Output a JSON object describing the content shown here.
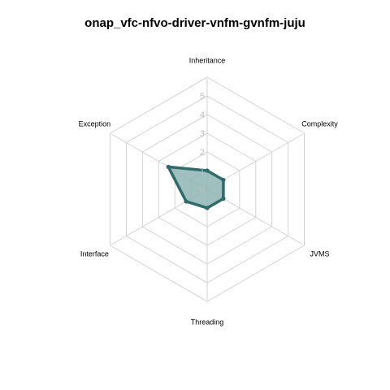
{
  "chart_data": {
    "type": "radar",
    "title": "onap_vfc-nfvo-driver-vnfm-gvnfm-juju",
    "axes": [
      "Inheritance",
      "Complexity",
      "JVMS",
      "Threading",
      "Interface",
      "Exception"
    ],
    "ticks": [
      "0",
      "1",
      "2",
      "3",
      "4",
      "5"
    ],
    "range": [
      0,
      5
    ],
    "grid": true,
    "series": [
      {
        "values": [
          1.0,
          1.0,
          1.0,
          1.0,
          1.3,
          2.4
        ]
      }
    ],
    "colors": {
      "series_stroke": "#2f6b6a",
      "series_fill": "#8fb5b4",
      "grid": "#d3d3d3",
      "tick_text": "#bdbdbd"
    }
  }
}
